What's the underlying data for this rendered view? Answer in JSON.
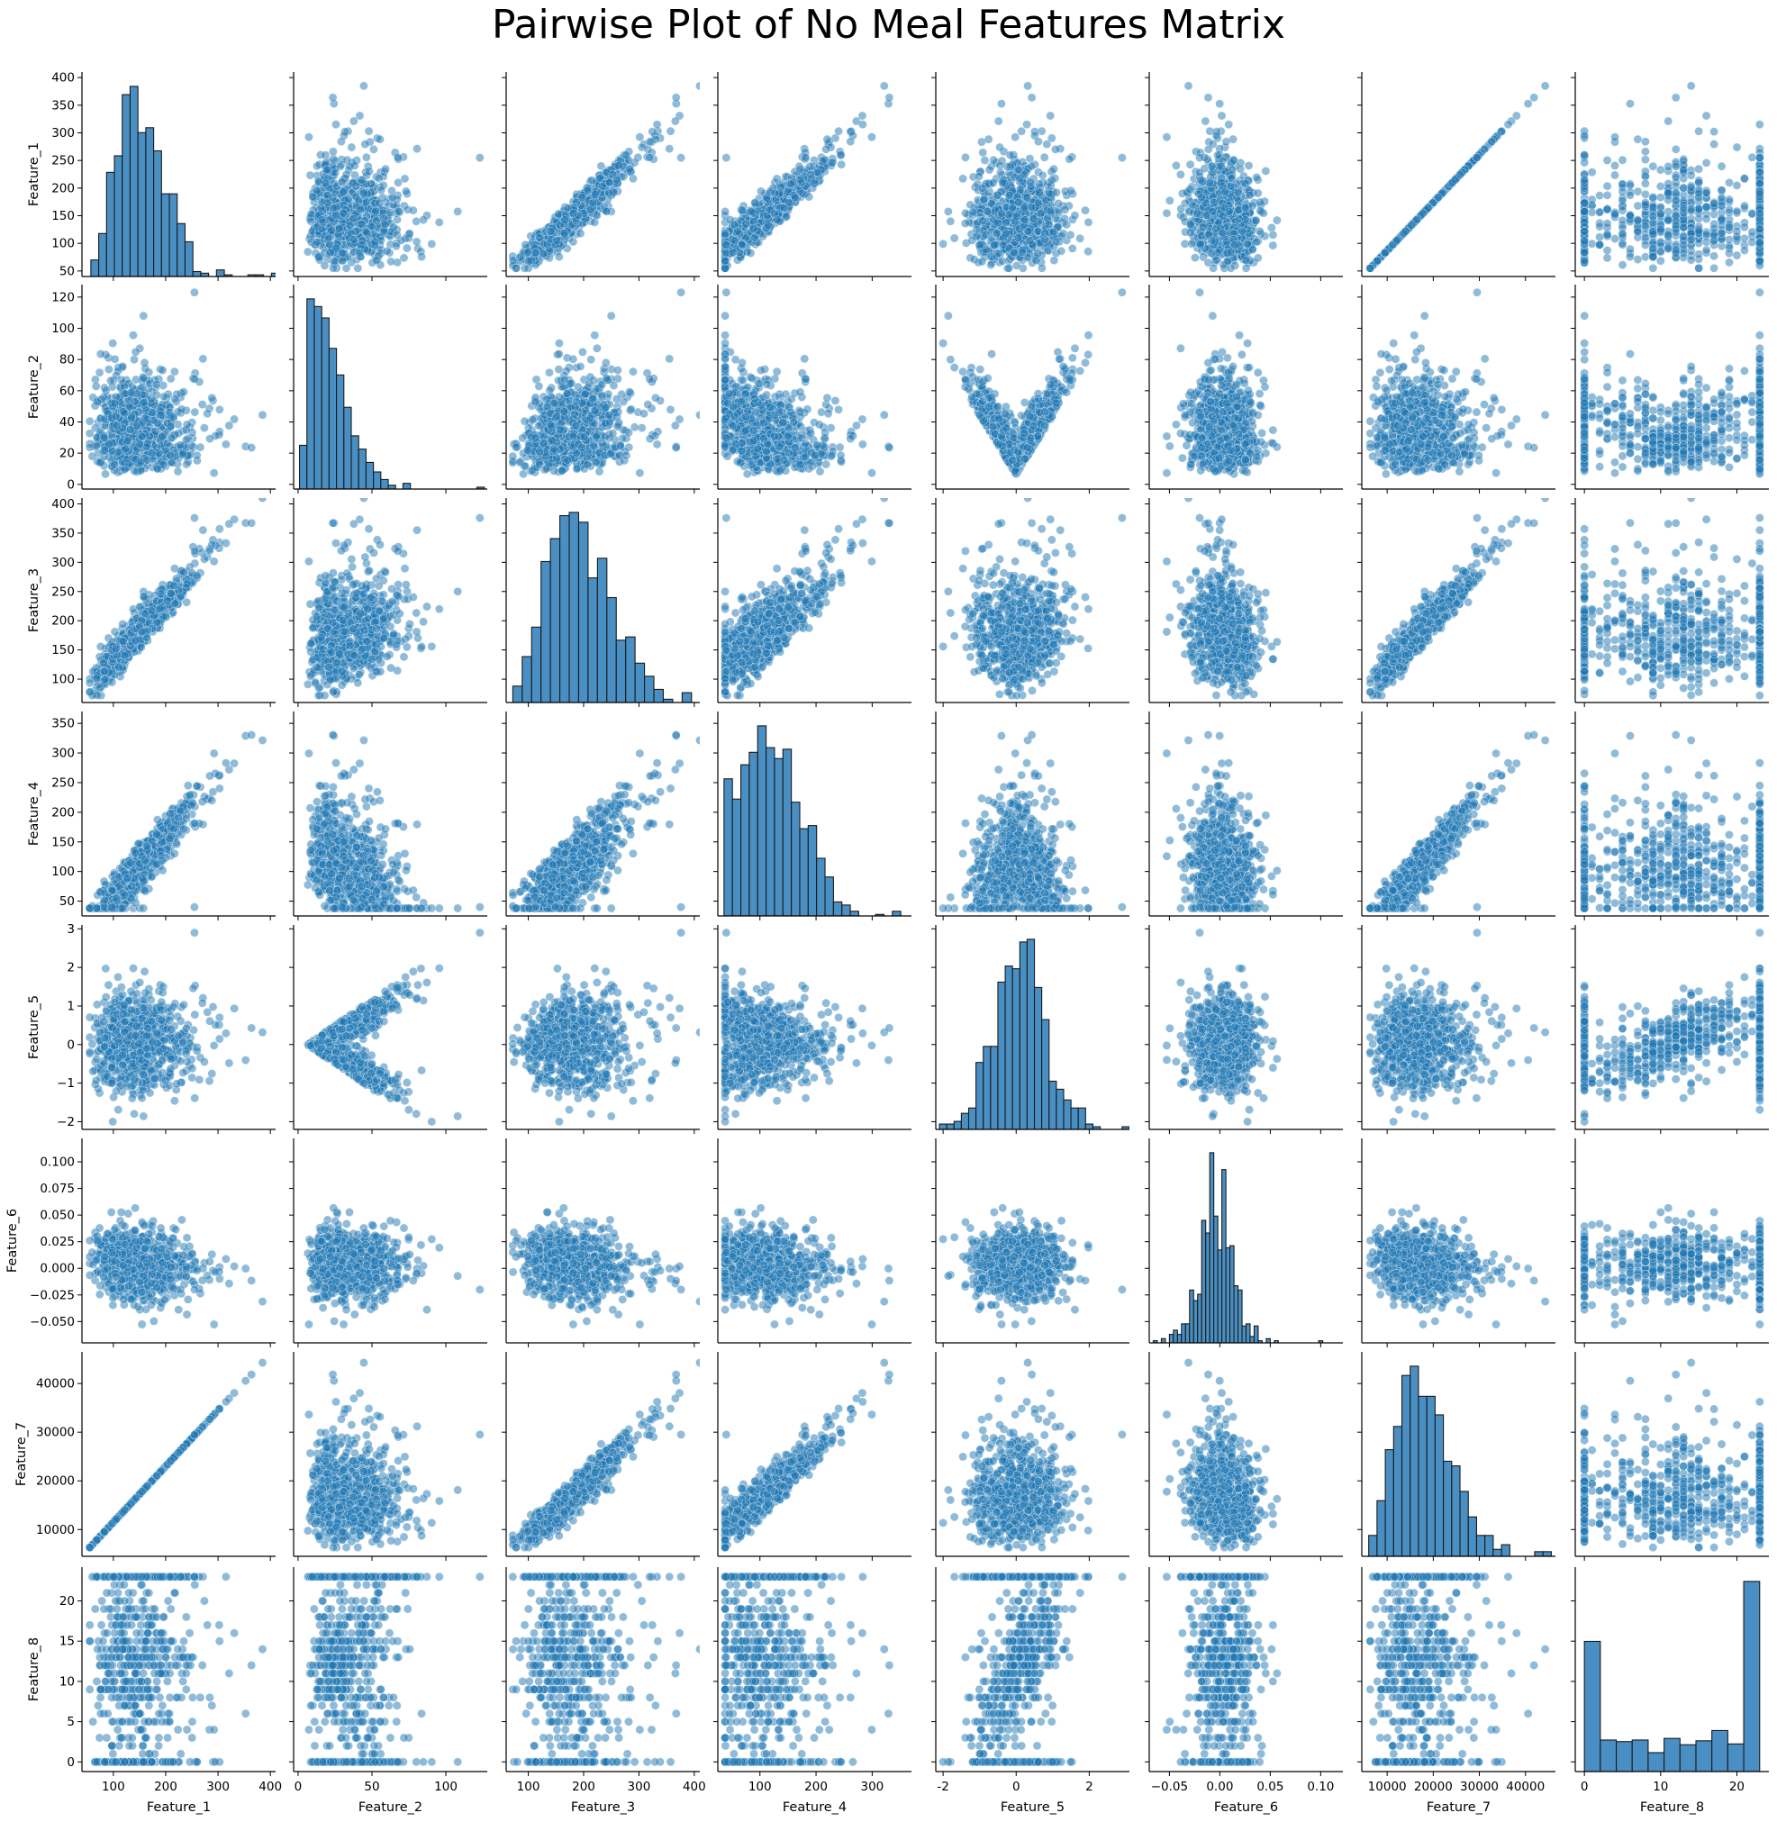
{
  "figure": {
    "title": "Pairwise Plot of No Meal Features Matrix",
    "point_color": "#1f77b4",
    "hist_color": "#4a8fc3",
    "point_alpha": 0.5
  },
  "chart_data": {
    "type": "scatter",
    "title": "Pairwise Plot of No Meal Features Matrix",
    "subtype": "pairplot",
    "variables": [
      "Feature_1",
      "Feature_2",
      "Feature_3",
      "Feature_4",
      "Feature_5",
      "Feature_6",
      "Feature_7",
      "Feature_8"
    ],
    "diagonal": "histogram",
    "off_diagonal": "scatter",
    "grid": false,
    "legend": null,
    "axes": [
      {
        "name": "Feature_1",
        "range": [
          40,
          410
        ],
        "ticks": [
          100,
          200,
          300,
          400
        ],
        "ytick_labels": [
          "50",
          "100",
          "150",
          "200",
          "250",
          "300",
          "350",
          "400"
        ],
        "yticks": [
          50,
          100,
          150,
          200,
          250,
          300,
          350,
          400
        ]
      },
      {
        "name": "Feature_2",
        "range": [
          -3,
          128
        ],
        "ticks": [
          0,
          50,
          100
        ],
        "yticks": [
          0,
          20,
          40,
          60,
          80,
          100,
          120
        ],
        "ytick_labels": [
          "0",
          "20",
          "40",
          "60",
          "80",
          "100",
          "120"
        ]
      },
      {
        "name": "Feature_3",
        "range": [
          60,
          410
        ],
        "ticks": [
          100,
          200,
          300,
          400
        ],
        "yticks": [
          100,
          150,
          200,
          250,
          300,
          350,
          400
        ],
        "ytick_labels": [
          "100",
          "150",
          "200",
          "250",
          "300",
          "350",
          "400"
        ]
      },
      {
        "name": "Feature_4",
        "range": [
          25,
          370
        ],
        "ticks": [
          100,
          200,
          300
        ],
        "yticks": [
          50,
          100,
          150,
          200,
          250,
          300,
          350
        ],
        "ytick_labels": [
          "50",
          "100",
          "150",
          "200",
          "250",
          "300",
          "350"
        ]
      },
      {
        "name": "Feature_5",
        "range": [
          -2.2,
          3.1
        ],
        "ticks": [
          -2,
          0,
          2
        ],
        "yticks": [
          -2,
          -1,
          0,
          1,
          2,
          3
        ],
        "ytick_labels": [
          "−2",
          "−1",
          "0",
          "1",
          "2",
          "3"
        ]
      },
      {
        "name": "Feature_6",
        "range": [
          -0.07,
          0.122
        ],
        "ticks": [
          -0.05,
          0.0,
          0.05,
          0.1
        ],
        "tick_labels": [
          "−0.05",
          "0.00",
          "0.05",
          "0.10"
        ],
        "yticks": [
          -0.05,
          -0.025,
          0,
          0.025,
          0.05,
          0.075,
          0.1
        ],
        "ytick_labels": [
          "−0.050",
          "−0.025",
          "0.000",
          "0.025",
          "0.050",
          "0.075",
          "0.100"
        ]
      },
      {
        "name": "Feature_7",
        "range": [
          4500,
          46500
        ],
        "ticks": [
          10000,
          20000,
          30000,
          40000
        ],
        "yticks": [
          10000,
          20000,
          30000,
          40000
        ],
        "ytick_labels": [
          "10000",
          "20000",
          "30000",
          "40000"
        ]
      },
      {
        "name": "Feature_8",
        "range": [
          -1.2,
          24.2
        ],
        "ticks": [
          0,
          10,
          20
        ],
        "yticks": [
          0,
          5,
          10,
          15,
          20
        ],
        "ytick_labels": [
          "0",
          "5",
          "10",
          "15",
          "20"
        ]
      }
    ],
    "histograms": [
      {
        "variable": "Feature_1",
        "bin_edges_start": 57,
        "bin_width": 15,
        "counts": [
          10,
          26,
          63,
          73,
          110,
          115,
          87,
          90,
          76,
          50,
          50,
          32,
          21,
          3,
          2,
          0,
          4,
          1,
          0,
          0,
          1,
          1,
          0,
          2
        ]
      },
      {
        "variable": "Feature_2",
        "bin_edges_start": 1,
        "bin_width": 5,
        "counts": [
          23,
          100,
          96,
          90,
          74,
          60,
          43,
          28,
          21,
          14,
          9,
          5,
          2,
          0,
          3,
          0,
          0,
          0,
          0,
          0,
          0,
          0,
          0,
          0,
          1
        ]
      },
      {
        "variable": "Feature_3",
        "bin_edges_start": 72,
        "bin_width": 17,
        "counts": [
          5,
          14,
          23,
          43,
          50,
          57,
          58,
          55,
          38,
          44,
          32,
          19,
          20,
          12,
          8,
          4,
          1,
          0,
          3
        ]
      },
      {
        "variable": "Feature_4",
        "bin_edges_start": 36,
        "bin_width": 15,
        "counts": [
          88,
          75,
          97,
          105,
          122,
          108,
          101,
          107,
          73,
          56,
          58,
          37,
          25,
          9,
          7,
          3,
          0,
          0,
          1,
          0,
          3
        ]
      },
      {
        "variable": "Feature_5",
        "bin_edges_start": -2.1,
        "bin_width": 0.2,
        "counts": [
          2,
          2,
          3,
          6,
          8,
          25,
          31,
          31,
          55,
          61,
          60,
          70,
          71,
          53,
          41,
          18,
          15,
          11,
          8,
          8,
          2,
          1,
          0,
          0,
          0,
          1
        ]
      },
      {
        "variable": "Feature_6",
        "bin_edges_start": -0.066,
        "bin_width": 0.004,
        "counts": [
          1,
          0,
          2,
          0,
          4,
          6,
          4,
          9,
          9,
          25,
          20,
          23,
          58,
          52,
          90,
          60,
          44,
          82,
          45,
          46,
          27,
          25,
          8,
          9,
          3,
          8,
          1,
          0,
          2,
          0,
          1,
          0,
          0,
          0,
          0,
          0,
          0,
          0,
          0,
          0,
          0,
          1
        ]
      },
      {
        "variable": "Feature_7",
        "bin_edges_start": 6000,
        "bin_width": 1800,
        "counts": [
          9,
          24,
          46,
          56,
          78,
          82,
          69,
          69,
          61,
          41,
          39,
          28,
          17,
          9,
          9,
          3,
          5,
          0,
          0,
          0,
          2,
          2
        ]
      },
      {
        "variable": "Feature_8",
        "bin_edges_start": 0,
        "bin_width": 2.09,
        "counts": [
          165,
          40,
          38,
          40,
          24,
          42,
          34,
          39,
          52,
          35,
          241
        ]
      }
    ],
    "scatter_relationships": [
      {
        "x": "Feature_7",
        "y": "Feature_1",
        "pattern": "perfect linear, y = x/115"
      },
      {
        "x": "Feature_3",
        "y": "Feature_1",
        "pattern": "strong positive linear"
      },
      {
        "x": "Feature_4",
        "y": "Feature_1",
        "pattern": "strong positive linear"
      },
      {
        "x": "Feature_5",
        "y": "Feature_2",
        "pattern": "V-shape, minimum near Feature_5 = 0"
      },
      {
        "x": "Feature_5",
        "y": "Feature_8",
        "pattern": "positive, Feature_8 discrete 0-23"
      },
      {
        "x": "Feature_2",
        "y": "Feature_4",
        "pattern": "negative triangular"
      },
      {
        "x": "Feature_6",
        "y": "Feature_1",
        "pattern": "weak negative"
      }
    ],
    "outlier": {
      "Feature_1": 255,
      "Feature_2": 123,
      "Feature_3": 376,
      "Feature_4": 40,
      "Feature_5": 2.9,
      "Feature_6": -0.02,
      "Feature_7": 29500,
      "Feature_8": 23
    }
  }
}
